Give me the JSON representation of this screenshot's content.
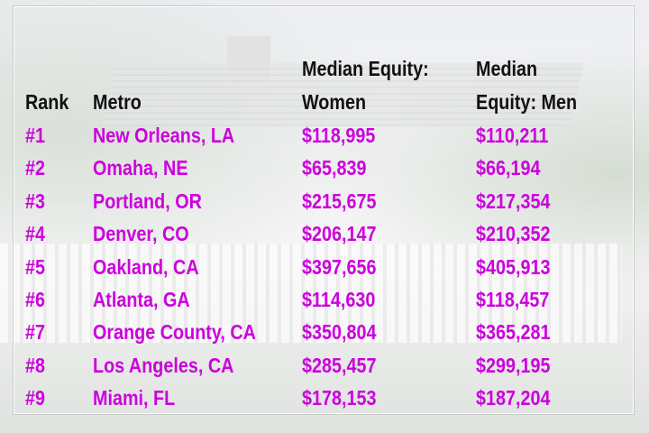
{
  "table": {
    "headers": {
      "rank": "Rank",
      "metro": "Metro",
      "women_line1": "Median Equity:",
      "women_line2": "Women",
      "men_line1": "Median",
      "men_line2": "Equity: Men"
    },
    "rows": [
      {
        "rank": "#1",
        "metro": "New Orleans, LA",
        "women": "$118,995",
        "men": "$110,211"
      },
      {
        "rank": "#2",
        "metro": "Omaha, NE",
        "women": "$65,839",
        "men": "$66,194"
      },
      {
        "rank": "#3",
        "metro": "Portland, OR",
        "women": "$215,675",
        "men": "$217,354"
      },
      {
        "rank": "#4",
        "metro": "Denver, CO",
        "women": "$206,147",
        "men": "$210,352"
      },
      {
        "rank": "#5",
        "metro": "Oakland, CA",
        "women": "$397,656",
        "men": "$405,913"
      },
      {
        "rank": "#6",
        "metro": "Atlanta, GA",
        "women": "$114,630",
        "men": "$118,457"
      },
      {
        "rank": "#7",
        "metro": "Orange County, CA",
        "women": "$350,804",
        "men": "$365,281"
      },
      {
        "rank": "#8",
        "metro": "Los Angeles, CA",
        "women": "$285,457",
        "men": "$299,195"
      },
      {
        "rank": "#9",
        "metro": "Miami, FL",
        "women": "$178,153",
        "men": "$187,204"
      }
    ]
  },
  "colors": {
    "value_text": "#cc00dd",
    "header_text": "#111111"
  },
  "background": "faded-house-photo"
}
